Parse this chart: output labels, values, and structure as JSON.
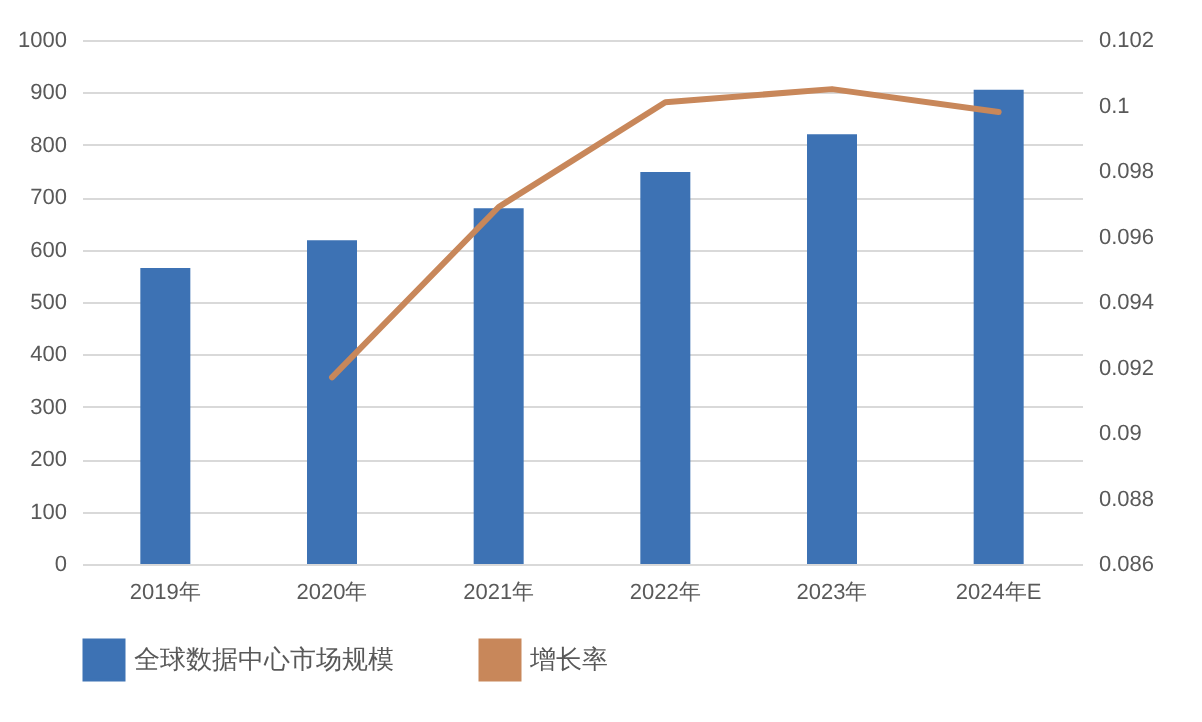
{
  "chart_data": {
    "type": "bar",
    "categories": [
      "2019年",
      "2020年",
      "2021年",
      "2022年",
      "2023年",
      "2024年E"
    ],
    "series": [
      {
        "name": "全球数据中心市场规模",
        "color": "#3d72b4",
        "values": [
          565,
          618,
          679,
          748,
          820,
          905
        ]
      },
      {
        "name": "增长率",
        "type": "line",
        "axis": "y2",
        "color": "#c8875a",
        "values": [
          null,
          0.0917,
          0.0969,
          0.1001,
          0.1005,
          0.0998
        ]
      }
    ],
    "ylim": [
      0,
      1000
    ],
    "yticks": [
      0,
      100,
      200,
      300,
      400,
      500,
      600,
      700,
      800,
      900,
      1000
    ],
    "y2lim": [
      0.086,
      0.102
    ],
    "y2ticks": [
      0.086,
      0.088,
      0.09,
      0.092,
      0.094,
      0.096,
      0.098,
      0.1,
      0.102
    ],
    "grid": "y",
    "legend": "bottom",
    "marker": "none",
    "line_style": "solid"
  }
}
